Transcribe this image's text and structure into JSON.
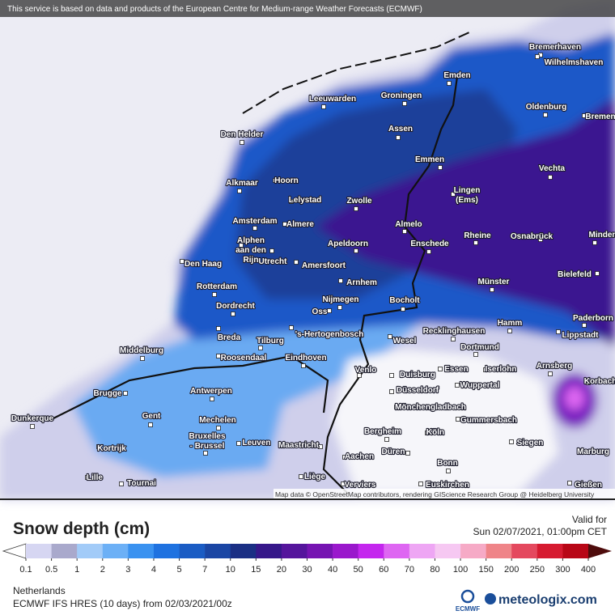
{
  "header": {
    "attribution": "This service is based on data and products of the European Centre for Medium-range Weather Forecasts (ECMWF)"
  },
  "map": {
    "credit": "Map data © OpenStreetMap contributors, rendering GIScience Research Group @ Heidelberg University",
    "cities": [
      [
        "Bremerhaven"
      ],
      [
        "Wilhelmshaven"
      ],
      [
        "Emden"
      ],
      [
        "Leeuwarden"
      ],
      [
        "Groningen"
      ],
      [
        "Oldenburg"
      ],
      [
        "Bremen"
      ],
      [
        "Assen"
      ],
      [
        "Den Helder"
      ],
      [
        "Emmen"
      ],
      [
        "Vechta"
      ],
      [
        "Alkmaar"
      ],
      [
        "Hoorn"
      ],
      [
        "Lingen",
        "(Ems)"
      ],
      [
        "Lelystad"
      ],
      [
        "Zwolle"
      ],
      [
        "Amsterdam"
      ],
      [
        "Almere"
      ],
      [
        "Almelo"
      ],
      [
        "Rheine"
      ],
      [
        "Osnabrück"
      ],
      [
        "Minden"
      ],
      [
        "Alphen",
        "aan den",
        "Rijn"
      ],
      [
        "Apeldoorn"
      ],
      [
        "Enschede"
      ],
      [
        "Utrecht"
      ],
      [
        "Den Haag"
      ],
      [
        "Amersfoort"
      ],
      [
        "Bielefeld"
      ],
      [
        "Arnhem"
      ],
      [
        "Münster"
      ],
      [
        "Rotterdam"
      ],
      [
        "Nijmegen"
      ],
      [
        "Bocholt"
      ],
      [
        "Dordrecht"
      ],
      [
        "Oss"
      ],
      [
        "Paderborn"
      ],
      [
        "Hamm"
      ],
      [
        "Breda"
      ],
      [
        "'s-Hertogenbosch"
      ],
      [
        "Tilburg"
      ],
      [
        "Wesel"
      ],
      [
        "Recklinghausen"
      ],
      [
        "Lippstadt"
      ],
      [
        "Middelburg"
      ],
      [
        "Roosendaal"
      ],
      [
        "Eindhoven"
      ],
      [
        "Dortmund"
      ],
      [
        "Venlo"
      ],
      [
        "Essen"
      ],
      [
        "Iserlohn"
      ],
      [
        "Arnsberg"
      ],
      [
        "Duisburg"
      ],
      [
        "Wuppertal"
      ],
      [
        "Korbach"
      ],
      [
        "Antwerpen"
      ],
      [
        "Brugge"
      ],
      [
        "Düsseldorf"
      ],
      [
        "Mönchengladbach"
      ],
      [
        "Gent"
      ],
      [
        "Dunkerque"
      ],
      [
        "Mechelen"
      ],
      [
        "Gummersbach"
      ],
      [
        "Bruxelles",
        "- Brussel"
      ],
      [
        "Bergheim"
      ],
      [
        "Köln"
      ],
      [
        "Leuven"
      ],
      [
        "Kortrijk"
      ],
      [
        "Maastricht"
      ],
      [
        "Siegen"
      ],
      [
        "Düren"
      ],
      [
        "Aachen"
      ],
      [
        "Marburg"
      ],
      [
        "Bonn"
      ],
      [
        "Lille"
      ],
      [
        "Liège"
      ],
      [
        "Tournai"
      ],
      [
        "Verviers"
      ],
      [
        "Euskirchen"
      ],
      [
        "Gießen"
      ]
    ]
  },
  "legend": {
    "title": "Snow depth (cm)",
    "valid_label": "Valid for",
    "valid_time": "Sun 02/07/2021, 01:00pm CET",
    "ticks": [
      0.1,
      0.5,
      1,
      2,
      3,
      4,
      5,
      7,
      10,
      15,
      20,
      30,
      40,
      50,
      60,
      70,
      80,
      100,
      150,
      200,
      250,
      300,
      400
    ],
    "colors": [
      "#ffffff",
      "#d6d6f2",
      "#a9a9cc",
      "#a2cbf8",
      "#6cb0f6",
      "#3a92f0",
      "#1f72e0",
      "#1a5cc4",
      "#1a46a4",
      "#1a2f84",
      "#36188a",
      "#55159c",
      "#7614b2",
      "#9a18cc",
      "#c426ee",
      "#de66f2",
      "#eea6f4",
      "#f6c8f2",
      "#f6aac6",
      "#ef8488",
      "#e4485e",
      "#d61a30",
      "#b80616",
      "#8a0410",
      "#4e0c0c"
    ]
  },
  "footer": {
    "region": "Netherlands",
    "model": "ECMWF IFS HRES (10 days) from 02/03/2021/00z",
    "logo": "ECMWF",
    "brand": "meteologix.com"
  }
}
